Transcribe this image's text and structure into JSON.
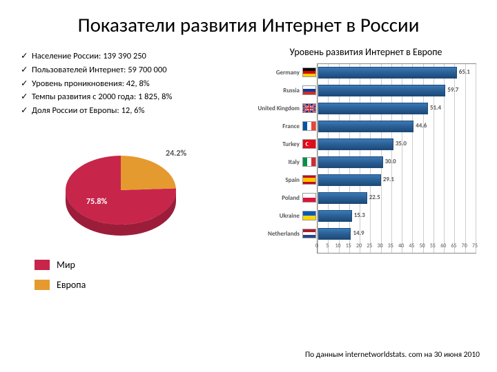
{
  "title": "Показатели развития Интернет в России",
  "bullets": [
    "Население России: 139 390 250",
    "Пользователей Интернет: 59 700 000",
    "Уровень проникновения: 42, 8%",
    "Темпы развития с 2000 года: 1 825, 8%",
    "Доля России от Европы: 12, 6%"
  ],
  "checkmark": "✓",
  "pie": {
    "slices": [
      {
        "label": "75.8%",
        "value": 75.8,
        "color": "#c8254b",
        "colorDark": "#9c1d3a"
      },
      {
        "label": "24.2%",
        "value": 24.2,
        "color": "#e59a2f",
        "colorDark": "#b87a22"
      }
    ],
    "label_color_out": "#555555"
  },
  "legend": [
    {
      "label": "Мир",
      "color": "#c8254b"
    },
    {
      "label": "Европа",
      "color": "#e59a2f"
    }
  ],
  "barChart": {
    "title": "Уровень развития Интернет в Европе",
    "xmax": 75,
    "xstep": 5,
    "bar_color": "#2b5f95",
    "data": [
      {
        "country": "Germany",
        "value": 65.1,
        "flag": "de"
      },
      {
        "country": "Russia",
        "value": 59.7,
        "flag": "ru"
      },
      {
        "country": "United Kingdom",
        "value": 51.4,
        "flag": "gb"
      },
      {
        "country": "France",
        "value": 44.6,
        "flag": "fr"
      },
      {
        "country": "Turkey",
        "value": 35.0,
        "flag": "tr"
      },
      {
        "country": "Italy",
        "value": 30.0,
        "flag": "it"
      },
      {
        "country": "Spain",
        "value": 29.1,
        "flag": "es"
      },
      {
        "country": "Poland",
        "value": 22.5,
        "flag": "pl"
      },
      {
        "country": "Ukraine",
        "value": 15.3,
        "flag": "ua"
      },
      {
        "country": "Netherlands",
        "value": 14.9,
        "flag": "nl"
      }
    ]
  },
  "source": "По данным internetworldstats. com на 30 июня 2010"
}
